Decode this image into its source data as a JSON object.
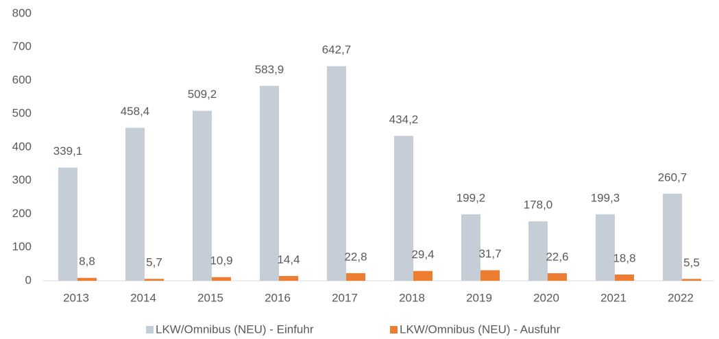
{
  "chart_data": {
    "type": "bar",
    "categories": [
      "2013",
      "2014",
      "2015",
      "2016",
      "2017",
      "2018",
      "2019",
      "2020",
      "2021",
      "2022"
    ],
    "series": [
      {
        "name": "LKW/Omnibus (NEU) - Einfuhr",
        "color": "#c5ced6",
        "values": [
          339.1,
          458.4,
          509.2,
          583.9,
          642.7,
          434.2,
          199.2,
          178.0,
          199.3,
          260.7
        ],
        "value_labels": [
          "339,1",
          "458,4",
          "509,2",
          "583,9",
          "642,7",
          "434,2",
          "199,2",
          "178,0",
          "199,3",
          "260,7"
        ]
      },
      {
        "name": "LKW/Omnibus (NEU) - Ausfuhr",
        "color": "#ed7d31",
        "values": [
          8.8,
          5.7,
          10.9,
          14.4,
          22.8,
          29.4,
          31.7,
          22.6,
          18.8,
          5.5
        ],
        "value_labels": [
          "8,8",
          "5,7",
          "10,9",
          "14,4",
          "22,8",
          "29,4",
          "31,7",
          "22,6",
          "18,8",
          "5,5"
        ]
      }
    ],
    "ylim": [
      0,
      800
    ],
    "yticks": [
      0,
      100,
      200,
      300,
      400,
      500,
      600,
      700,
      800
    ],
    "grid": false,
    "legend": "bottom"
  }
}
